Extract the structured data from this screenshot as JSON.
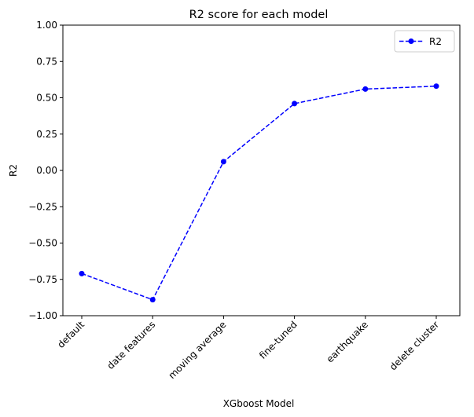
{
  "chart_data": {
    "type": "line",
    "title": "R2 score for each model",
    "xlabel": "XGboost Model",
    "ylabel": "R2",
    "categories": [
      "default",
      "date features",
      "moving average",
      "fine-tuned",
      "earthquake",
      "delete cluster"
    ],
    "series": [
      {
        "name": "R2",
        "values": [
          -0.71,
          -0.89,
          0.06,
          0.46,
          0.56,
          0.58
        ],
        "color": "#0000ff",
        "line_style": "dashed",
        "marker": "circle"
      }
    ],
    "ylim": [
      -1.0,
      1.0
    ],
    "yticks": [
      "−1.00",
      "−0.75",
      "−0.50",
      "−0.25",
      "0.00",
      "0.25",
      "0.50",
      "0.75",
      "1.00"
    ],
    "grid": false,
    "legend_position": "top-right"
  }
}
